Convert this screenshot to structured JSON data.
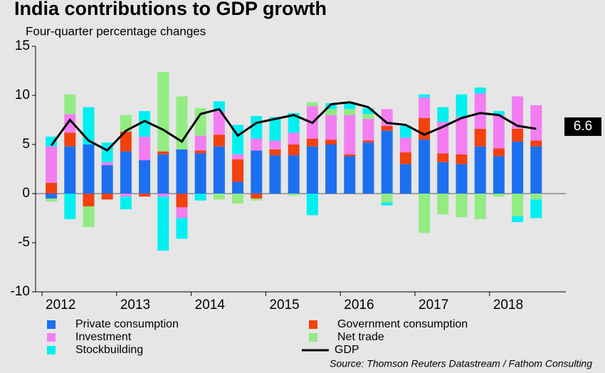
{
  "chart_data": {
    "type": "bar",
    "title": "India contributions to GDP growth",
    "subtitle": "Four-quarter percentage changes",
    "source": "Source: Thomson Reuters Datastream / Fathom Consulting",
    "categories": [
      "2012",
      null,
      null,
      null,
      "2013",
      null,
      null,
      null,
      "2014",
      null,
      null,
      null,
      "2015",
      null,
      null,
      null,
      "2016",
      null,
      null,
      null,
      "2017",
      null,
      null,
      null,
      "2018",
      null,
      null
    ],
    "stacked": true,
    "series": [
      {
        "name": "Private consumption",
        "color": "#1e6ff0",
        "values": [
          -0.5,
          4.8,
          5.0,
          2.9,
          4.3,
          3.4,
          4.0,
          4.5,
          4.1,
          4.8,
          1.2,
          4.4,
          3.9,
          3.9,
          4.8,
          5.0,
          3.8,
          5.2,
          6.4,
          3.0,
          5.5,
          3.2,
          3.0,
          4.8,
          3.8,
          5.3,
          4.8
        ]
      },
      {
        "name": "Government consumption",
        "color": "#f2400f",
        "values": [
          1.1,
          1.4,
          -1.3,
          -0.6,
          2.0,
          -0.3,
          0.3,
          -1.4,
          0.3,
          1.2,
          2.3,
          -0.5,
          0.6,
          1.1,
          0.8,
          0.5,
          0.2,
          0.2,
          0.5,
          1.2,
          2.2,
          0.9,
          1.0,
          1.8,
          0.8,
          1.3,
          0.6
        ]
      },
      {
        "name": "Investment",
        "color": "#f27ef2",
        "values": [
          3.7,
          1.9,
          0,
          0.3,
          -0.3,
          2.4,
          -0.3,
          -1.1,
          1.5,
          2.4,
          0.5,
          1.2,
          0.9,
          1.2,
          3.3,
          2.5,
          4.0,
          2.2,
          1.7,
          1.5,
          2.1,
          3.2,
          3.8,
          3.6,
          3.4,
          3.3,
          3.6
        ]
      },
      {
        "name": "Net trade",
        "color": "#92ec82",
        "values": [
          -0.3,
          2.0,
          -2.1,
          0,
          1.7,
          0,
          8.1,
          5.4,
          2.8,
          -0.6,
          -1.0,
          -0.2,
          0,
          -0.2,
          0.4,
          0.6,
          0.6,
          0.5,
          -0.9,
          0,
          -4.0,
          -2.1,
          -2.4,
          -2.6,
          -0.3,
          -2.3,
          -0.6
        ]
      },
      {
        "name": "Stockbuilding",
        "color": "#00f0f0",
        "values": [
          1.0,
          -2.6,
          3.8,
          2.0,
          -1.3,
          2.6,
          -5.5,
          -2.1,
          -0.7,
          1.0,
          3.0,
          2.3,
          2.4,
          2.0,
          -2.2,
          0.6,
          0.7,
          0.6,
          -0.3,
          1.2,
          0.3,
          1.5,
          2.3,
          0.6,
          0.4,
          -0.6,
          -1.9
        ]
      },
      {
        "name": "GDP",
        "color": "#000000",
        "type": "line",
        "values": [
          4.9,
          7.5,
          5.4,
          4.4,
          6.4,
          7.4,
          6.5,
          5.3,
          8.1,
          8.6,
          5.9,
          7.2,
          7.6,
          8.0,
          7.2,
          9.1,
          9.3,
          8.8,
          7.2,
          7.0,
          6.0,
          6.8,
          7.7,
          8.2,
          8.0,
          6.9,
          6.6
        ]
      }
    ],
    "ylim": [
      -10,
      15
    ],
    "yticks": [
      -10,
      -5,
      0,
      5,
      10,
      15
    ]
  }
}
